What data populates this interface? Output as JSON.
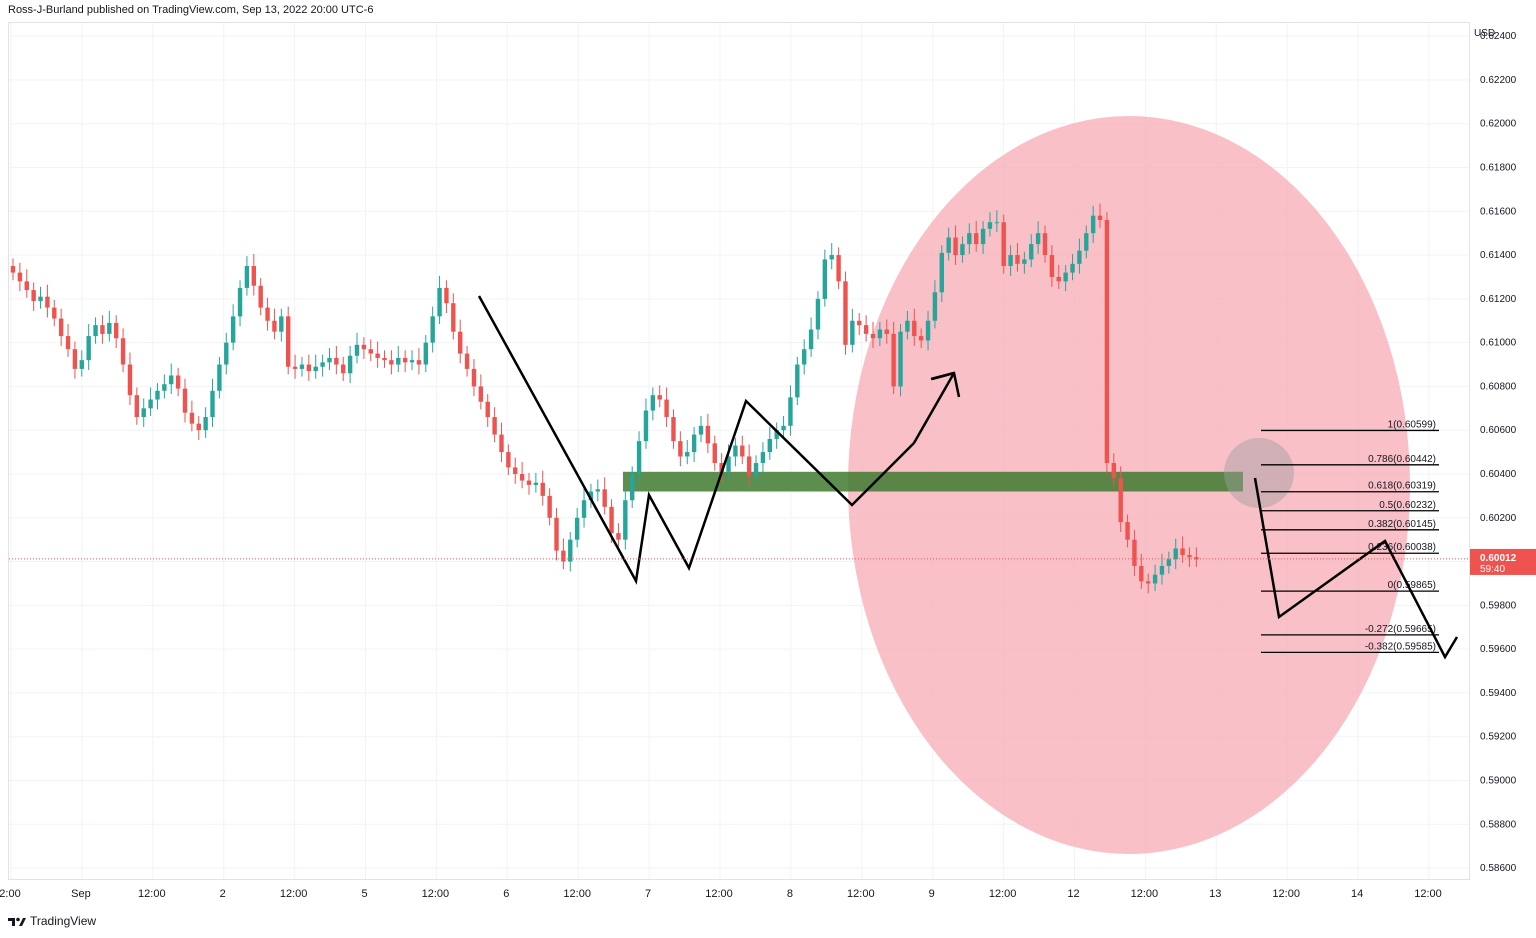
{
  "header": {
    "text": "Ross-J-Burland published on TradingView.com, Sep 13, 2022 20:00 UTC-6"
  },
  "footer": {
    "brand": "TradingView"
  },
  "colors": {
    "up": "#26a69a",
    "down": "#ef5350",
    "zone": "#3f7a2f",
    "ellipse": "#f7a8b2",
    "fib": "#000000"
  },
  "chart_data": {
    "type": "candlestick",
    "currency": "USD",
    "ylim": [
      0.5855,
      0.6246
    ],
    "y_ticks": [
      "0.62400",
      "0.62200",
      "0.62000",
      "0.61800",
      "0.61600",
      "0.61400",
      "0.61200",
      "0.61000",
      "0.60800",
      "0.60600",
      "0.60400",
      "0.60200",
      "0.60000",
      "0.59800",
      "0.59600",
      "0.59400",
      "0.59200",
      "0.59000",
      "0.58800",
      "0.58600"
    ],
    "x_ticks": [
      "2:00",
      "Sep",
      "12:00",
      "2",
      "12:00",
      "5",
      "12:00",
      "6",
      "12:00",
      "7",
      "12:00",
      "8",
      "12:00",
      "9",
      "12:00",
      "12",
      "12:00",
      "13",
      "12:00",
      "14",
      "12:00"
    ],
    "current_price": {
      "value": "0.60012",
      "countdown": "59:40"
    },
    "support_zone": {
      "low": 0.6032,
      "high": 0.6041
    },
    "fibonacci": [
      {
        "label": "1(0.60599)",
        "level": 0.60599
      },
      {
        "label": "0.786(0.60442)",
        "level": 0.60442
      },
      {
        "label": "0.618(0.60319)",
        "level": 0.60319
      },
      {
        "label": "0.5(0.60232)",
        "level": 0.60232
      },
      {
        "label": "0.382(0.60145)",
        "level": 0.60145
      },
      {
        "label": "0.236(0.60038)",
        "level": 0.60038
      },
      {
        "label": "0(0.59865)",
        "level": 0.59865
      },
      {
        "label": "-0.272(0.59665)",
        "level": 0.59665
      },
      {
        "label": "-0.382(0.59585)",
        "level": 0.59585
      }
    ],
    "closes": [
      0.6132,
      0.6128,
      0.6124,
      0.6119,
      0.6121,
      0.6116,
      0.6111,
      0.6103,
      0.6097,
      0.6088,
      0.6092,
      0.6103,
      0.6108,
      0.6104,
      0.6109,
      0.6102,
      0.609,
      0.6076,
      0.6066,
      0.607,
      0.6074,
      0.6078,
      0.6081,
      0.6085,
      0.6079,
      0.6068,
      0.6063,
      0.606,
      0.6066,
      0.6078,
      0.609,
      0.61,
      0.6112,
      0.6125,
      0.6135,
      0.6126,
      0.6116,
      0.611,
      0.6105,
      0.6112,
      0.6089,
      0.6088,
      0.609,
      0.6087,
      0.6089,
      0.6091,
      0.6093,
      0.609,
      0.6086,
      0.6094,
      0.6099,
      0.6097,
      0.6095,
      0.6093,
      0.6092,
      0.609,
      0.6093,
      0.6091,
      0.6092,
      0.609,
      0.61,
      0.6112,
      0.6125,
      0.6118,
      0.6105,
      0.6095,
      0.6088,
      0.608,
      0.6073,
      0.6066,
      0.6058,
      0.605,
      0.6043,
      0.604,
      0.6037,
      0.6035,
      0.6036,
      0.603,
      0.602,
      0.6005,
      0.6,
      0.601,
      0.602,
      0.6028,
      0.6032,
      0.6033,
      0.6025,
      0.6013,
      0.601,
      0.6028,
      0.604,
      0.6055,
      0.6069,
      0.6076,
      0.6074,
      0.6066,
      0.6055,
      0.6048,
      0.605,
      0.6058,
      0.6062,
      0.6054,
      0.6045,
      0.6041,
      0.6048,
      0.6053,
      0.6048,
      0.6039,
      0.6045,
      0.605,
      0.6056,
      0.606,
      0.6062,
      0.6075,
      0.609,
      0.6097,
      0.6106,
      0.612,
      0.6138,
      0.614,
      0.6128,
      0.6099,
      0.611,
      0.6108,
      0.6104,
      0.6102,
      0.6106,
      0.6104,
      0.608,
      0.6105,
      0.611,
      0.6103,
      0.6101,
      0.611,
      0.6123,
      0.6141,
      0.6148,
      0.614,
      0.6145,
      0.615,
      0.6145,
      0.6152,
      0.6155,
      0.6155,
      0.6135,
      0.614,
      0.6136,
      0.6138,
      0.6145,
      0.615,
      0.614,
      0.613,
      0.6128,
      0.6132,
      0.6136,
      0.6142,
      0.615,
      0.6158,
      0.6156,
      0.6045,
      0.6038,
      0.6018,
      0.601,
      0.5998,
      0.5991,
      0.599,
      0.5994,
      0.5998,
      0.6001,
      0.6006,
      0.6003,
      0.6002,
      0.6001
    ],
    "drawings": [
      "zigzag",
      "arrow-up",
      "projection-path",
      "ellipse",
      "fib-retracement",
      "support-zone"
    ]
  }
}
